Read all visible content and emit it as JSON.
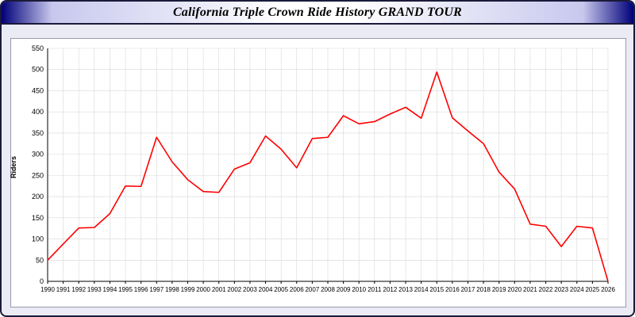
{
  "header": {
    "title": "California Triple Crown Ride History GRAND TOUR"
  },
  "chart_data": {
    "type": "line",
    "title": "California Triple Crown Ride History GRAND TOUR",
    "xlabel": "",
    "ylabel": "Riders",
    "ylim": [
      0,
      550
    ],
    "y_tick_step": 50,
    "grid": true,
    "legend": "none",
    "line_color": "#ff0000",
    "grid_color": "#d8d8d8",
    "x": [
      1990,
      1991,
      1992,
      1993,
      1994,
      1995,
      1996,
      1997,
      1998,
      1999,
      2000,
      2001,
      2002,
      2003,
      2004,
      2005,
      2006,
      2007,
      2008,
      2009,
      2010,
      2011,
      2012,
      2013,
      2014,
      2015,
      2016,
      2017,
      2018,
      2019,
      2020,
      2021,
      2022,
      2023,
      2024,
      2025,
      2026
    ],
    "values": [
      50,
      88,
      126,
      127,
      160,
      225,
      224,
      340,
      282,
      240,
      212,
      210,
      265,
      280,
      343,
      312,
      268,
      337,
      340,
      391,
      372,
      377,
      395,
      411,
      385,
      494,
      386,
      355,
      325,
      258,
      218,
      135,
      130,
      82,
      130,
      126,
      0
    ]
  }
}
